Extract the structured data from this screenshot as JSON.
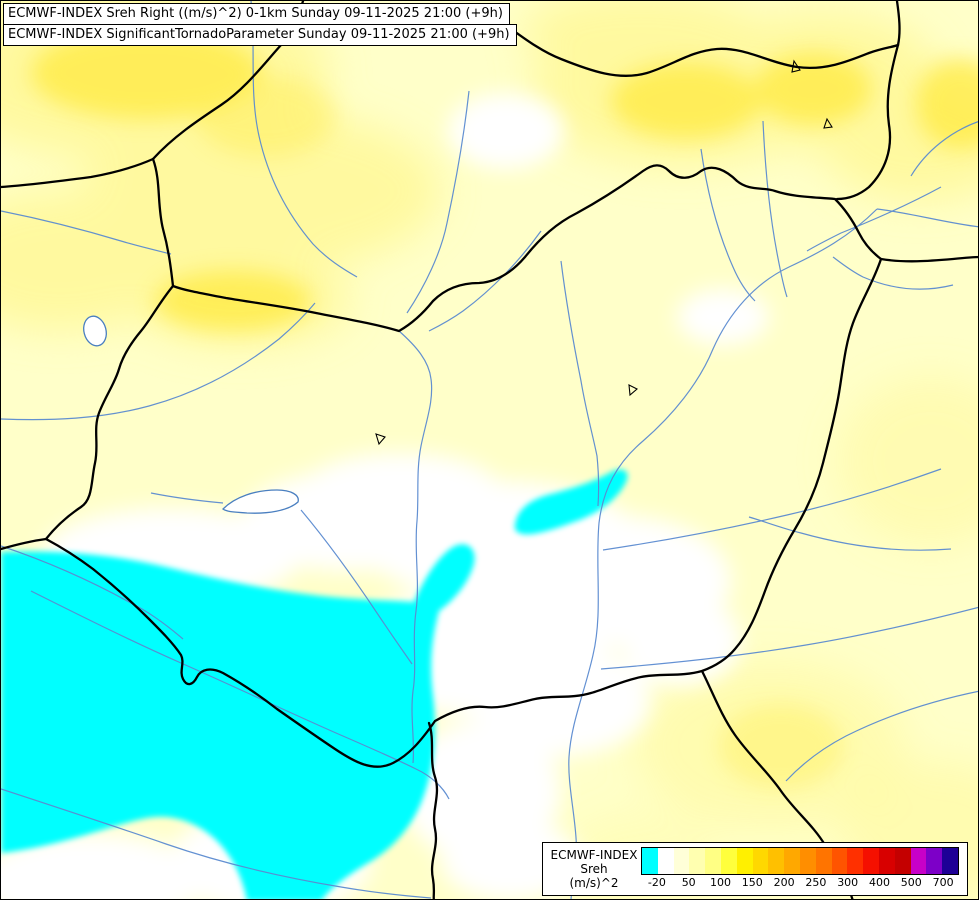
{
  "header": {
    "line1": "ECMWF-INDEX Sreh Right ((m/s)^2) 0-1km Sunday 09-11-2025 21:00 (+9h)",
    "line2": "ECMWF-INDEX SignificantTornadoParameter Sunday 09-11-2025 21:00 (+9h)"
  },
  "legend": {
    "title_line1": "ECMWF-INDEX",
    "title_line2": "Sreh",
    "title_line3": "(m/s)^2",
    "tick_labels": [
      "-20",
      "50",
      "100",
      "150",
      "200",
      "250",
      "300",
      "400",
      "500",
      "700"
    ],
    "colors": [
      "#00ffff",
      "#ffffff",
      "#ffffd8",
      "#ffffb0",
      "#ffff84",
      "#ffff3c",
      "#fff000",
      "#ffd800",
      "#ffc000",
      "#ffa800",
      "#ff8e00",
      "#ff7400",
      "#ff5400",
      "#ff3000",
      "#f51000",
      "#d80000",
      "#c40000",
      "#c800c8",
      "#7d00c8",
      "#1e0096"
    ]
  },
  "map": {
    "colors": {
      "base_fill": "#ffffc9",
      "yellow_wash": "#fff895",
      "deep_yellow": "#ffe93b",
      "white_region": "#ffffff",
      "cyan_region": "#00ffff",
      "river": "#5b8bd0",
      "border": "#000000",
      "lake_outline": "#4a7fc0",
      "lake_fill": "#ffffff"
    }
  },
  "chart_data": {
    "type": "heatmap",
    "title": "ECMWF-INDEX Sreh Right ((m/s)^2) 0-1km",
    "overlay": "ECMWF-INDEX SignificantTornadoParameter",
    "valid_time": "Sunday 09-11-2025 21:00 (+9h)",
    "unit": "(m/s)^2",
    "scale_values": [
      -20,
      50,
      100,
      150,
      200,
      250,
      300,
      400,
      500,
      700
    ],
    "scale_colors": [
      "#00ffff",
      "#ffffff",
      "#ffffd8",
      "#ffffb0",
      "#ffff84",
      "#ffff3c",
      "#fff000",
      "#ffd800",
      "#ffc000",
      "#ffa800",
      "#ff8e00",
      "#ff7400",
      "#ff5400",
      "#ff3000",
      "#f51000",
      "#d80000",
      "#c40000",
      "#c800c8",
      "#7d00c8",
      "#1e0096"
    ],
    "regions": [
      {
        "area": "southwest quadrant (SW Hungary / Croatia / Slovenia)",
        "value_band": "below -20",
        "color": "cyan"
      },
      {
        "area": "small patch central Hungary near Lake Velence",
        "value_band": "below -20",
        "color": "cyan"
      },
      {
        "area": "central Hungary band and south-central strip",
        "value_band": "-20 to 0",
        "color": "white"
      },
      {
        "area": "north, northeast, east and southeast periphery",
        "value_band": "0 to 50",
        "color": "pale yellow"
      },
      {
        "area": "local maxima northwest, north-center-west blob, top-right corner, southeast corner",
        "value_band": "around 50",
        "color": "yellow"
      }
    ]
  }
}
